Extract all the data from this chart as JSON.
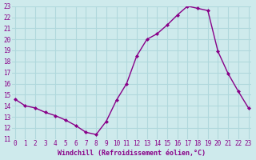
{
  "x": [
    0,
    1,
    2,
    3,
    4,
    5,
    6,
    7,
    8,
    9,
    10,
    11,
    12,
    13,
    14,
    15,
    16,
    17,
    18,
    19,
    20,
    21,
    22,
    23
  ],
  "y": [
    14.6,
    14.0,
    13.8,
    13.4,
    13.1,
    12.7,
    12.2,
    11.6,
    11.4,
    12.6,
    14.5,
    16.0,
    18.5,
    20.0,
    20.5,
    21.3,
    22.2,
    23.0,
    22.8,
    22.6,
    18.9,
    16.9,
    15.3,
    13.8
  ],
  "line_color": "#880088",
  "marker": "D",
  "marker_size": 2.0,
  "bg_color": "#ceeaec",
  "grid_color": "#b0d8dc",
  "xlabel": "Windchill (Refroidissement éolien,°C)",
  "xlabel_color": "#880088",
  "tick_color": "#880088",
  "ylim_min": 11,
  "ylim_max": 23,
  "xlim_min": 0,
  "xlim_max": 23,
  "yticks": [
    11,
    12,
    13,
    14,
    15,
    16,
    17,
    18,
    19,
    20,
    21,
    22,
    23
  ],
  "xticks": [
    0,
    1,
    2,
    3,
    4,
    5,
    6,
    7,
    8,
    9,
    10,
    11,
    12,
    13,
    14,
    15,
    16,
    17,
    18,
    19,
    20,
    21,
    22,
    23
  ],
  "line_width": 1.0,
  "tick_fontsize": 5.5,
  "xlabel_fontsize": 6.0
}
